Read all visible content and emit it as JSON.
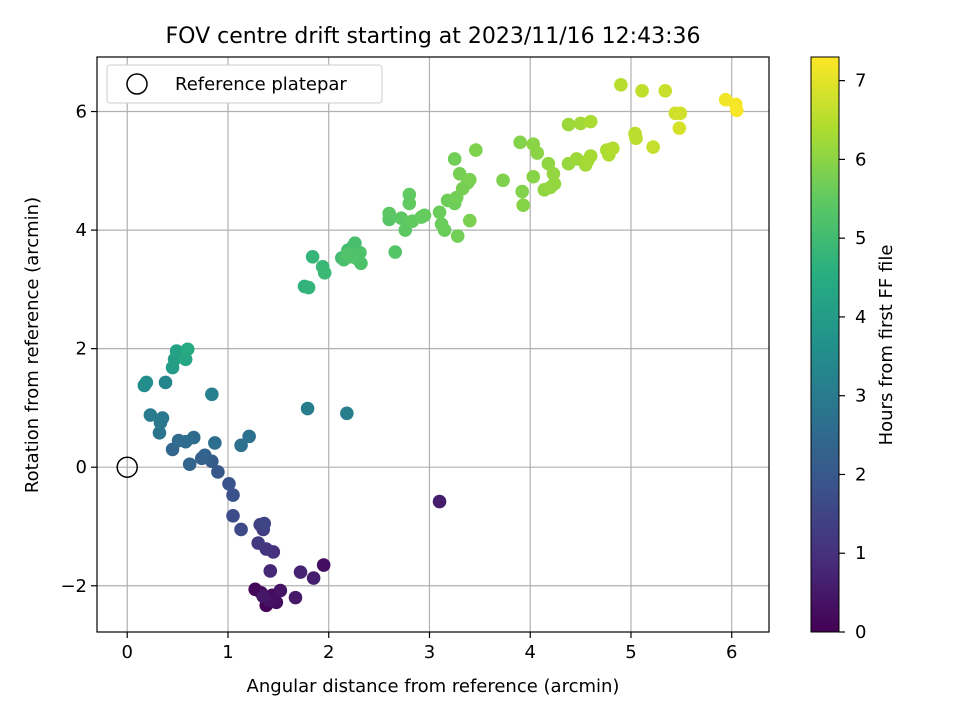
{
  "chart_data": {
    "type": "scatter",
    "title": "FOV centre drift starting at 2023/11/16 12:43:36",
    "xlabel": "Angular distance from reference (arcmin)",
    "ylabel": "Rotation from reference (arcmin)",
    "xlim": [
      -0.3,
      6.37
    ],
    "ylim": [
      -2.78,
      6.92
    ],
    "xticks": [
      0,
      1,
      2,
      3,
      4,
      5,
      6
    ],
    "yticks": [
      -2,
      0,
      2,
      4,
      6
    ],
    "grid": true,
    "legend": {
      "position": "top-left",
      "entries": [
        "Reference platepar"
      ]
    },
    "reference_point": {
      "x": 0,
      "y": 0
    },
    "colorbar": {
      "label": "Hours from first FF file",
      "range": [
        0,
        7.3
      ],
      "ticks": [
        0,
        1,
        2,
        3,
        4,
        5,
        6,
        7
      ],
      "colormap": "viridis"
    },
    "points": [
      [
        1.38,
        -2.33,
        0.05
      ],
      [
        1.27,
        -2.06,
        0.1
      ],
      [
        1.33,
        -2.12,
        0.15
      ],
      [
        1.44,
        -2.16,
        0.2
      ],
      [
        1.48,
        -2.28,
        0.25
      ],
      [
        1.95,
        -1.65,
        0.3
      ],
      [
        1.41,
        -2.25,
        0.35
      ],
      [
        1.52,
        -2.08,
        0.4
      ],
      [
        1.35,
        -2.18,
        0.45
      ],
      [
        1.67,
        -2.2,
        0.5
      ],
      [
        3.1,
        -0.58,
        0.55
      ],
      [
        1.85,
        -1.87,
        0.6
      ],
      [
        1.72,
        -1.77,
        0.7
      ],
      [
        1.42,
        -1.75,
        0.8
      ],
      [
        1.45,
        -1.43,
        1.0
      ],
      [
        1.38,
        -1.38,
        1.1
      ],
      [
        1.3,
        -1.28,
        1.2
      ],
      [
        1.35,
        -1.05,
        1.3
      ],
      [
        1.32,
        -0.97,
        1.4
      ],
      [
        1.36,
        -0.95,
        1.5
      ],
      [
        1.13,
        -1.05,
        1.6
      ],
      [
        1.05,
        -0.82,
        1.7
      ],
      [
        1.05,
        -0.47,
        1.8
      ],
      [
        1.01,
        -0.28,
        1.9
      ],
      [
        0.9,
        -0.08,
        2.0
      ],
      [
        0.84,
        0.1,
        2.1
      ],
      [
        0.74,
        0.15,
        2.2
      ],
      [
        0.77,
        0.2,
        2.3
      ],
      [
        0.62,
        0.05,
        2.35
      ],
      [
        0.45,
        0.3,
        2.4
      ],
      [
        0.51,
        0.45,
        2.5
      ],
      [
        0.66,
        0.5,
        2.55
      ],
      [
        0.58,
        0.43,
        2.6
      ],
      [
        0.87,
        0.41,
        2.65
      ],
      [
        1.13,
        0.37,
        2.7
      ],
      [
        1.21,
        0.52,
        2.75
      ],
      [
        0.32,
        0.58,
        2.8
      ],
      [
        0.33,
        0.75,
        2.9
      ],
      [
        0.35,
        0.83,
        2.95
      ],
      [
        0.23,
        0.88,
        3.0
      ],
      [
        1.79,
        0.99,
        3.05
      ],
      [
        2.18,
        0.91,
        3.1
      ],
      [
        0.84,
        1.23,
        3.15
      ],
      [
        0.38,
        1.43,
        3.3
      ],
      [
        0.17,
        1.38,
        3.5
      ],
      [
        0.19,
        1.43,
        3.6
      ],
      [
        0.45,
        1.68,
        4.0
      ],
      [
        0.47,
        1.82,
        4.1
      ],
      [
        0.49,
        1.96,
        4.2
      ],
      [
        0.58,
        1.82,
        4.3
      ],
      [
        0.6,
        1.99,
        4.4
      ],
      [
        1.76,
        3.05,
        4.7
      ],
      [
        1.8,
        3.03,
        4.75
      ],
      [
        1.84,
        3.55,
        4.8
      ],
      [
        1.94,
        3.38,
        4.85
      ],
      [
        1.96,
        3.28,
        4.9
      ],
      [
        2.13,
        3.53,
        4.95
      ],
      [
        2.19,
        3.66,
        5.0
      ],
      [
        2.24,
        3.72,
        5.05
      ],
      [
        2.26,
        3.78,
        5.1
      ],
      [
        2.2,
        3.6,
        5.1
      ],
      [
        2.15,
        3.5,
        5.15
      ],
      [
        2.28,
        3.52,
        5.15
      ],
      [
        2.32,
        3.44,
        5.2
      ],
      [
        2.31,
        3.62,
        5.2
      ],
      [
        2.23,
        3.55,
        5.25
      ],
      [
        2.19,
        3.6,
        5.25
      ],
      [
        2.66,
        3.63,
        5.3
      ],
      [
        2.6,
        4.18,
        5.35
      ],
      [
        2.6,
        4.28,
        5.4
      ],
      [
        2.76,
        4.0,
        5.45
      ],
      [
        2.72,
        4.2,
        5.45
      ],
      [
        2.8,
        4.45,
        5.5
      ],
      [
        2.83,
        4.15,
        5.5
      ],
      [
        2.8,
        4.6,
        5.5
      ],
      [
        2.92,
        4.22,
        5.55
      ],
      [
        2.95,
        4.25,
        5.55
      ],
      [
        3.1,
        4.3,
        5.6
      ],
      [
        3.12,
        4.1,
        5.6
      ],
      [
        3.15,
        4.0,
        5.6
      ],
      [
        3.18,
        4.5,
        5.65
      ],
      [
        3.25,
        4.45,
        5.65
      ],
      [
        3.27,
        4.55,
        5.7
      ],
      [
        3.28,
        3.9,
        5.7
      ],
      [
        3.25,
        5.2,
        5.7
      ],
      [
        3.3,
        4.95,
        5.75
      ],
      [
        3.33,
        4.7,
        5.75
      ],
      [
        3.38,
        4.8,
        5.75
      ],
      [
        3.4,
        4.16,
        5.8
      ],
      [
        3.4,
        4.85,
        5.8
      ],
      [
        3.46,
        5.35,
        5.85
      ],
      [
        3.73,
        4.84,
        5.85
      ],
      [
        3.9,
        5.48,
        5.9
      ],
      [
        3.92,
        4.65,
        5.9
      ],
      [
        3.93,
        4.42,
        5.95
      ],
      [
        4.03,
        4.9,
        5.95
      ],
      [
        4.03,
        5.45,
        6.0
      ],
      [
        4.07,
        5.3,
        6.0
      ],
      [
        4.14,
        4.68,
        6.05
      ],
      [
        4.18,
        5.12,
        6.05
      ],
      [
        4.2,
        4.72,
        6.1
      ],
      [
        4.23,
        4.95,
        6.1
      ],
      [
        4.24,
        4.78,
        6.1
      ],
      [
        4.38,
        5.12,
        6.15
      ],
      [
        4.38,
        5.78,
        6.2
      ],
      [
        4.46,
        5.2,
        6.2
      ],
      [
        4.5,
        5.8,
        6.25
      ],
      [
        4.55,
        5.1,
        6.25
      ],
      [
        4.57,
        5.17,
        6.3
      ],
      [
        4.6,
        5.25,
        6.3
      ],
      [
        4.6,
        5.83,
        6.35
      ],
      [
        4.76,
        5.35,
        6.4
      ],
      [
        4.78,
        5.27,
        6.4
      ],
      [
        4.82,
        5.38,
        6.45
      ],
      [
        4.9,
        6.45,
        6.5
      ],
      [
        5.04,
        5.63,
        6.55
      ],
      [
        5.05,
        5.55,
        6.55
      ],
      [
        5.11,
        6.35,
        6.6
      ],
      [
        5.22,
        5.4,
        6.65
      ],
      [
        5.34,
        6.35,
        6.7
      ],
      [
        5.44,
        5.97,
        6.75
      ],
      [
        5.49,
        5.97,
        6.8
      ],
      [
        5.48,
        5.72,
        6.85
      ],
      [
        5.94,
        6.2,
        7.15
      ],
      [
        6.04,
        6.12,
        7.2
      ],
      [
        6.05,
        6.02,
        7.25
      ]
    ]
  }
}
